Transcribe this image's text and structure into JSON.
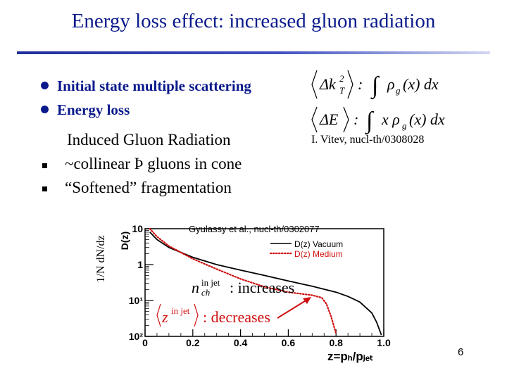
{
  "slide": {
    "title": "Energy loss effect: increased gluon radiation",
    "bullets": [
      "Initial state multiple scattering",
      "Energy loss"
    ],
    "sub_heading": "Induced Gluon Radiation",
    "sub_bullets": [
      "~collinear Þ gluons in cone",
      "“Softened” fragmentation"
    ],
    "formulas": {
      "kt": "⟨Δkₜ²⟩ : ∫ ρg(x) dx",
      "eloss": "⟨ΔE⟩ : ∫ x ρg(x) dx"
    },
    "citation": "I. Vitev, nucl-th/0308028",
    "page_number": "6"
  },
  "chart_data": {
    "type": "line",
    "title": "Gyulassy et al., nucl-th/0302077",
    "xlabel": "z=pₕ/pⱼₑₜ",
    "ylabel_outer": "1/N dN/dz",
    "ylabel_inner": "D(z)",
    "x_ticks": [
      "0",
      "0.2",
      "0.4",
      "0.6",
      "0.8",
      "1.0"
    ],
    "y_ticks": [
      "10²",
      "10¹",
      "1",
      "10"
    ],
    "xlim": [
      0,
      1
    ],
    "y_scale": "log",
    "ylim": [
      0.01,
      10
    ],
    "legend_placement": "top-right",
    "legend": [
      {
        "name": "D(z) Vacuum",
        "color": "#000000",
        "style": "solid"
      },
      {
        "name": "D(z) Medium",
        "color": "#d01010",
        "style": "dotted"
      }
    ],
    "series": [
      {
        "name": "D(z) Vacuum",
        "x": [
          0.02,
          0.05,
          0.1,
          0.2,
          0.3,
          0.4,
          0.5,
          0.6,
          0.7,
          0.8,
          0.85,
          0.9,
          0.95,
          0.97,
          0.99
        ],
        "y": [
          8,
          5,
          3,
          1.6,
          1.0,
          0.7,
          0.5,
          0.35,
          0.25,
          0.17,
          0.13,
          0.09,
          0.045,
          0.025,
          0.011
        ]
      },
      {
        "name": "D(z) Medium",
        "x": [
          0.02,
          0.05,
          0.1,
          0.2,
          0.3,
          0.4,
          0.5,
          0.6,
          0.7,
          0.74,
          0.76,
          0.78,
          0.8
        ],
        "y": [
          10,
          6,
          3.3,
          1.45,
          0.75,
          0.4,
          0.24,
          0.17,
          0.14,
          0.12,
          0.08,
          0.035,
          0.012
        ]
      }
    ],
    "annotations": [
      {
        "text": "n_ch^{in jet} : increases",
        "color": "#000000"
      },
      {
        "text": "⟨z^{in jet}⟩ : decreases",
        "color": "#d01010"
      }
    ],
    "arrow_color": "#d01010"
  }
}
